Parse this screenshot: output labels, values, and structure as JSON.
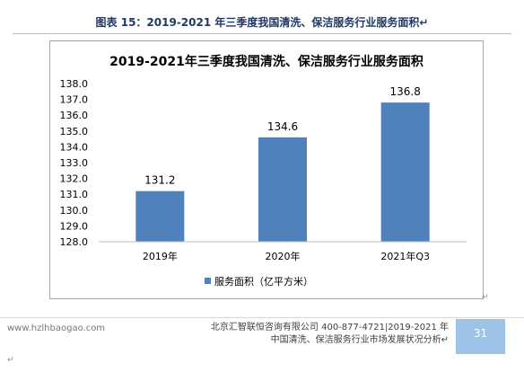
{
  "caption": "图表 15：2019-2021 年三季度我国清洗、保洁服务行业服务面积↵",
  "chart_data": {
    "type": "bar",
    "title": "2019-2021年三季度我国清洗、保洁服务行业服务面积",
    "categories": [
      "2019年",
      "2020年",
      "2021年Q3"
    ],
    "series": [
      {
        "name": "服务面积（亿平方米）",
        "values": [
          131.2,
          134.6,
          136.8
        ],
        "color": "#4f81bd"
      }
    ],
    "ylim": [
      128.0,
      138.0
    ],
    "yticks": [
      128.0,
      129.0,
      130.0,
      131.0,
      132.0,
      133.0,
      134.0,
      135.0,
      136.0,
      137.0,
      138.0
    ],
    "data_labels": [
      "131.2",
      "134.6",
      "136.8"
    ],
    "legend": "bottom",
    "grid": false
  },
  "footer": {
    "site": "www.hzlhbaogao.com",
    "company": "北京汇智联恒咨询有限公司  400-877-4721|2019-2021 年",
    "report": "中国清洗、保洁服务行业市场发展状况分析↵",
    "page": "31"
  },
  "marks": {
    "para": "↵"
  },
  "colors": {
    "bar": "#4f81bd",
    "caption": "#1f3864",
    "page_box": "#9dc3e6"
  }
}
